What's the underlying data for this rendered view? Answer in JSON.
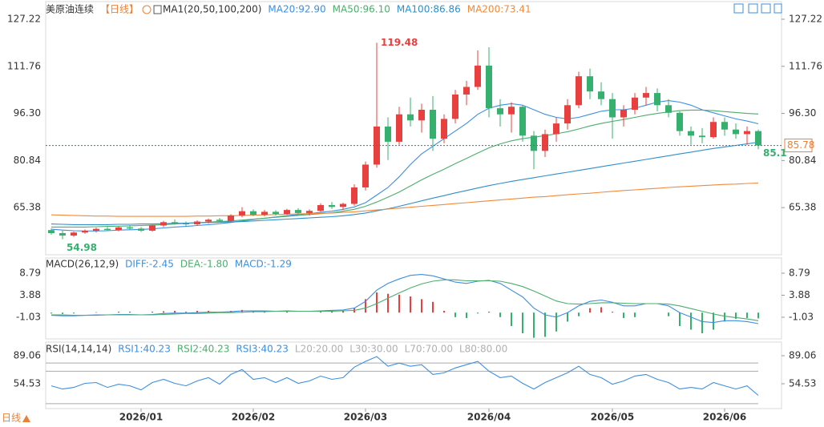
{
  "header": {
    "symbol": "美原油连续",
    "period": "【日线】",
    "indicator": "MA1(20,50,100,200)"
  },
  "footer": {
    "period": "日线"
  },
  "chart_data": [
    {
      "type": "candlestick",
      "categories": [
        null,
        null,
        null,
        null,
        null,
        null,
        null,
        null,
        "2026/01",
        null,
        null,
        null,
        null,
        null,
        null,
        null,
        null,
        null,
        "2026/02",
        null,
        null,
        null,
        null,
        null,
        null,
        null,
        null,
        null,
        "2026/03",
        null,
        null,
        null,
        null,
        null,
        null,
        null,
        null,
        null,
        null,
        "2026/04",
        null,
        null,
        null,
        null,
        null,
        null,
        null,
        null,
        null,
        null,
        "2026/05",
        null,
        null,
        null,
        null,
        null,
        null,
        null,
        null,
        null,
        "2026/06",
        null,
        null,
        null
      ],
      "open": [
        58.0,
        57.0,
        56.2,
        57.2,
        57.8,
        58.4,
        58.0,
        58.9,
        58.5,
        57.8,
        59.5,
        60.6,
        60.2,
        59.9,
        60.8,
        61.4,
        61.0,
        62.8,
        64.2,
        63.0,
        64.0,
        63.3,
        64.6,
        63.6,
        64.3,
        66.2,
        65.6,
        66.6,
        72.0,
        79.5,
        92.0,
        87.0,
        96.0,
        94.0,
        97.5,
        88.0,
        94.5,
        102.5,
        105.0,
        112.0,
        98.0,
        96.0,
        98.5,
        89.0,
        84.0,
        89.5,
        93.0,
        99.0,
        108.5,
        103.5,
        101.0,
        95.0,
        97.5,
        101.5,
        103.0,
        99.0,
        96.5,
        90.5,
        89.0,
        88.5,
        93.5,
        91.0,
        89.5,
        90.5
      ],
      "high": [
        58.5,
        57.8,
        57.5,
        58.2,
        58.8,
        59.0,
        59.2,
        59.6,
        59.0,
        59.8,
        61.0,
        61.5,
        60.8,
        61.2,
        61.8,
        62.0,
        63.2,
        65.5,
        64.8,
        64.6,
        64.5,
        65.0,
        65.2,
        64.8,
        66.8,
        67.2,
        67.0,
        73.0,
        80.5,
        119.48,
        95.0,
        98.5,
        101.5,
        99.5,
        102.0,
        96.0,
        104.0,
        107.0,
        117.0,
        118.0,
        101.0,
        100.0,
        99.0,
        90.5,
        91.0,
        95.0,
        101.0,
        110.0,
        111.0,
        106.5,
        103.0,
        99.0,
        103.0,
        105.0,
        104.5,
        101.0,
        97.0,
        92.0,
        91.5,
        95.0,
        95.0,
        93.0,
        92.0,
        91.0
      ],
      "low": [
        56.5,
        54.98,
        55.8,
        56.8,
        57.2,
        57.8,
        57.6,
        58.2,
        57.4,
        57.5,
        59.0,
        59.8,
        59.4,
        59.5,
        60.2,
        60.6,
        60.8,
        62.2,
        62.6,
        62.5,
        62.8,
        63.0,
        63.2,
        62.8,
        64.0,
        65.0,
        64.6,
        66.0,
        71.0,
        78.5,
        81.0,
        86.0,
        92.0,
        90.0,
        84.0,
        86.5,
        93.0,
        99.0,
        104.0,
        95.0,
        92.0,
        90.0,
        87.0,
        78.0,
        82.0,
        87.0,
        91.0,
        98.0,
        101.0,
        99.0,
        88.0,
        92.0,
        96.0,
        99.0,
        97.0,
        95.0,
        89.0,
        86.0,
        86.5,
        88.0,
        89.0,
        88.0,
        86.0,
        84.5
      ],
      "close": [
        57.0,
        56.2,
        57.2,
        57.8,
        58.4,
        58.0,
        58.9,
        58.5,
        57.8,
        59.5,
        60.6,
        60.2,
        59.9,
        60.8,
        61.4,
        61.0,
        62.8,
        64.2,
        63.0,
        64.0,
        63.3,
        64.6,
        63.6,
        64.3,
        66.2,
        65.6,
        66.6,
        72.0,
        79.5,
        92.0,
        87.0,
        96.0,
        94.0,
        97.5,
        88.0,
        94.5,
        102.5,
        105.0,
        112.0,
        98.0,
        96.0,
        98.5,
        89.0,
        84.0,
        89.5,
        93.0,
        99.0,
        108.5,
        103.5,
        101.0,
        95.0,
        97.5,
        101.5,
        103.0,
        99.0,
        96.5,
        90.5,
        89.0,
        88.5,
        93.5,
        91.0,
        89.5,
        90.5,
        85.78
      ],
      "up_color": "#e8403f",
      "down_color": "#35b06e",
      "series": [
        {
          "name": "MA20:92.90",
          "color": "#3d8fe0",
          "values": [
            58.3,
            58.0,
            57.8,
            57.7,
            57.7,
            57.8,
            58.0,
            58.1,
            58.2,
            58.4,
            58.7,
            59.0,
            59.2,
            59.5,
            59.8,
            60.1,
            60.5,
            61.0,
            61.5,
            61.9,
            62.3,
            62.7,
            63.1,
            63.4,
            63.8,
            64.2,
            64.8,
            65.6,
            67.0,
            69.5,
            72.0,
            75.5,
            79.5,
            83.0,
            85.5,
            88.0,
            90.5,
            93.0,
            96.0,
            98.0,
            99.0,
            99.5,
            99.0,
            97.5,
            96.0,
            95.0,
            94.5,
            95.0,
            96.0,
            97.0,
            97.5,
            97.5,
            98.0,
            99.0,
            100.0,
            100.5,
            100.0,
            99.0,
            97.5,
            96.5,
            95.5,
            94.5,
            93.8,
            92.9
          ]
        },
        {
          "name": "MA50:96.10",
          "color": "#4cae6c",
          "values": [
            59.0,
            59.0,
            59.0,
            59.0,
            59.1,
            59.2,
            59.3,
            59.4,
            59.5,
            59.6,
            59.8,
            60.0,
            60.2,
            60.4,
            60.6,
            60.8,
            61.0,
            61.3,
            61.6,
            61.9,
            62.2,
            62.5,
            62.8,
            63.1,
            63.4,
            63.7,
            64.2,
            64.8,
            65.8,
            67.2,
            68.8,
            70.5,
            72.5,
            74.5,
            76.3,
            78.0,
            79.8,
            81.5,
            83.3,
            85.0,
            86.3,
            87.3,
            88.0,
            88.5,
            89.0,
            89.6,
            90.3,
            91.2,
            92.2,
            93.0,
            93.7,
            94.3,
            95.0,
            95.7,
            96.3,
            96.8,
            97.2,
            97.4,
            97.4,
            97.2,
            96.9,
            96.6,
            96.3,
            96.1
          ]
        },
        {
          "name": "MA100:86.86",
          "color": "#2f8fc9",
          "values": [
            60.0,
            59.9,
            59.8,
            59.8,
            59.8,
            59.8,
            59.9,
            59.9,
            60.0,
            60.0,
            60.1,
            60.2,
            60.3,
            60.4,
            60.5,
            60.6,
            60.7,
            60.8,
            61.0,
            61.2,
            61.4,
            61.6,
            61.8,
            62.0,
            62.2,
            62.4,
            62.7,
            63.1,
            63.6,
            64.3,
            65.0,
            65.8,
            66.7,
            67.6,
            68.5,
            69.3,
            70.2,
            71.0,
            71.8,
            72.6,
            73.3,
            74.0,
            74.6,
            75.2,
            75.8,
            76.4,
            77.0,
            77.6,
            78.2,
            78.8,
            79.4,
            80.0,
            80.6,
            81.2,
            81.8,
            82.4,
            83.0,
            83.6,
            84.2,
            84.8,
            85.3,
            85.8,
            86.3,
            86.86
          ]
        },
        {
          "name": "MA200:73.41",
          "color": "#f08a3c",
          "values": [
            63.0,
            62.9,
            62.8,
            62.7,
            62.6,
            62.6,
            62.5,
            62.5,
            62.5,
            62.5,
            62.5,
            62.5,
            62.5,
            62.6,
            62.6,
            62.7,
            62.7,
            62.8,
            62.9,
            63.0,
            63.1,
            63.2,
            63.3,
            63.4,
            63.5,
            63.6,
            63.8,
            64.0,
            64.3,
            64.6,
            64.9,
            65.2,
            65.5,
            65.8,
            66.1,
            66.4,
            66.7,
            67.0,
            67.3,
            67.6,
            67.9,
            68.2,
            68.5,
            68.8,
            69.0,
            69.3,
            69.6,
            69.9,
            70.1,
            70.4,
            70.7,
            71.0,
            71.2,
            71.5,
            71.7,
            72.0,
            72.2,
            72.4,
            72.6,
            72.8,
            73.0,
            73.1,
            73.3,
            73.41
          ]
        }
      ],
      "annotations": [
        "85.1"
      ],
      "ylim": [
        49.9,
        130.9
      ],
      "yticks": [
        127.22,
        111.76,
        {
          "value": 96.3,
          "label": "96.30"
        },
        80.84,
        65.38
      ]
    },
    {
      "type": "macd",
      "title": "MACD(26,12,9)",
      "series": [
        {
          "name": "DIFF:-2.45",
          "color": "#3d8fe0",
          "values": [
            -0.6,
            -0.7,
            -0.7,
            -0.6,
            -0.5,
            -0.5,
            -0.4,
            -0.4,
            -0.5,
            -0.4,
            -0.2,
            -0.1,
            -0.1,
            0.0,
            0.1,
            0.1,
            0.2,
            0.4,
            0.4,
            0.4,
            0.3,
            0.4,
            0.3,
            0.3,
            0.4,
            0.5,
            0.6,
            1.0,
            2.5,
            5.0,
            6.5,
            7.5,
            8.3,
            8.5,
            8.2,
            7.5,
            6.8,
            6.5,
            7.0,
            7.2,
            6.5,
            5.0,
            3.5,
            1.0,
            -0.5,
            -1.0,
            0.0,
            1.5,
            2.5,
            2.8,
            2.3,
            1.5,
            1.5,
            2.0,
            2.0,
            1.5,
            0.0,
            -1.0,
            -2.0,
            -2.2,
            -1.8,
            -1.8,
            -2.0,
            -2.45
          ]
        },
        {
          "name": "DEA:-1.80",
          "color": "#4cae6c",
          "values": [
            -0.5,
            -0.5,
            -0.6,
            -0.6,
            -0.6,
            -0.5,
            -0.5,
            -0.5,
            -0.5,
            -0.5,
            -0.4,
            -0.3,
            -0.2,
            -0.2,
            -0.1,
            0.0,
            0.0,
            0.1,
            0.2,
            0.2,
            0.3,
            0.3,
            0.3,
            0.3,
            0.3,
            0.3,
            0.4,
            0.5,
            1.0,
            2.0,
            3.2,
            4.4,
            5.5,
            6.4,
            7.0,
            7.3,
            7.3,
            7.1,
            7.1,
            7.1,
            7.0,
            6.5,
            5.8,
            4.8,
            3.7,
            2.6,
            2.0,
            1.9,
            2.0,
            2.2,
            2.2,
            2.1,
            2.0,
            2.0,
            2.0,
            1.9,
            1.5,
            0.9,
            0.3,
            -0.3,
            -0.8,
            -1.1,
            -1.4,
            -1.8
          ]
        }
      ],
      "histogram": {
        "name": "MACD:-1.29",
        "color": "#3d8fe0",
        "up_color": "#e8403f",
        "down_color": "#35b06e",
        "values": [
          -0.2,
          -0.3,
          -0.2,
          0.0,
          0.1,
          0.0,
          0.2,
          0.2,
          0.0,
          0.2,
          0.3,
          0.4,
          0.2,
          0.4,
          0.4,
          0.2,
          0.4,
          0.6,
          0.4,
          0.4,
          0.0,
          0.2,
          0.0,
          0.0,
          0.2,
          0.4,
          0.4,
          1.0,
          3.0,
          4.5,
          4.2,
          4.0,
          3.6,
          3.0,
          2.4,
          0.4,
          -1.0,
          -1.2,
          -0.2,
          0.2,
          -1.0,
          -3.0,
          -4.6,
          -5.6,
          -5.4,
          -4.2,
          -2.0,
          -0.8,
          1.0,
          1.2,
          0.2,
          -1.2,
          -1.0,
          0.0,
          0.0,
          -0.8,
          -3.0,
          -3.8,
          -4.6,
          -3.8,
          -2.0,
          -1.4,
          -1.2,
          -1.29
        ]
      },
      "ylim": [
        -5.85,
        12.18
      ],
      "yticks": [
        8.79,
        3.88,
        -1.03
      ]
    },
    {
      "type": "line",
      "title": "RSI(14,14,14)",
      "series": [
        {
          "name": "RSI1:40.23",
          "color": "#3d8fe0",
          "values": [
            52,
            48,
            50,
            55,
            56,
            50,
            54,
            52,
            47,
            56,
            60,
            55,
            52,
            58,
            62,
            54,
            66,
            72,
            60,
            62,
            56,
            62,
            55,
            58,
            64,
            60,
            62,
            75,
            82,
            88,
            76,
            80,
            76,
            78,
            66,
            68,
            74,
            78,
            82,
            70,
            62,
            64,
            55,
            48,
            56,
            62,
            68,
            76,
            66,
            62,
            54,
            58,
            64,
            66,
            60,
            56,
            48,
            50,
            48,
            56,
            52,
            48,
            52,
            40.23
          ]
        }
      ],
      "extra_legend": [
        {
          "name": "RSI2:40.23",
          "color": "#4cae6c"
        },
        {
          "name": "RSI3:40.23",
          "color": "#3d8fe0"
        }
      ],
      "levels": [
        {
          "label": "L20:20.00",
          "value": 20
        },
        {
          "label": "L30:30.00",
          "value": 30
        },
        {
          "label": "L70:70.00",
          "value": 70
        },
        {
          "label": "L80:80.00",
          "value": 80
        }
      ],
      "ylim": [
        24,
        105.8
      ],
      "yticks": [
        89.06,
        54.53
      ]
    }
  ]
}
